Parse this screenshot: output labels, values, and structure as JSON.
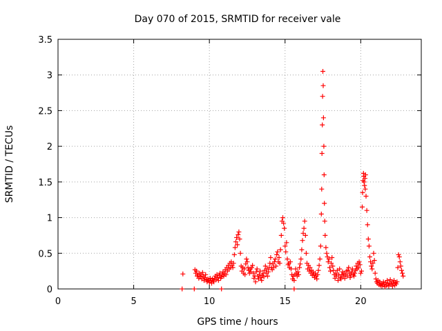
{
  "chart_data": {
    "type": "scatter",
    "title": "Day 070 of 2015, SRMTID for receiver vale",
    "xlabel": "GPS time / hours",
    "ylabel": "SRMTID / TECUs",
    "xlim": [
      0,
      24
    ],
    "ylim": [
      0,
      3.5
    ],
    "xticks": [
      0,
      5,
      10,
      15,
      20
    ],
    "yticks": [
      0,
      0.5,
      1,
      1.5,
      2,
      2.5,
      3,
      3.5
    ],
    "xtick_labels": [
      "0",
      "5",
      "10",
      "15",
      "20"
    ],
    "ytick_labels": [
      "0",
      "0.5",
      "1",
      "1.5",
      "2",
      "2.5",
      "3",
      "3.5"
    ],
    "grid": true,
    "marker": "+",
    "color": "#ff0000",
    "series": [
      {
        "name": "SRMTID",
        "points": [
          [
            8.2,
            0.0
          ],
          [
            8.25,
            0.21
          ],
          [
            9.0,
            0.0
          ],
          [
            10.8,
            0.0
          ],
          [
            15.6,
            0.0
          ],
          [
            9.05,
            0.27
          ],
          [
            9.1,
            0.22
          ],
          [
            9.15,
            0.25
          ],
          [
            9.2,
            0.18
          ],
          [
            9.25,
            0.2
          ],
          [
            9.3,
            0.15
          ],
          [
            9.35,
            0.22
          ],
          [
            9.4,
            0.17
          ],
          [
            9.45,
            0.2
          ],
          [
            9.5,
            0.14
          ],
          [
            9.55,
            0.23
          ],
          [
            9.6,
            0.18
          ],
          [
            9.65,
            0.12
          ],
          [
            9.7,
            0.16
          ],
          [
            9.75,
            0.2
          ],
          [
            9.8,
            0.13
          ],
          [
            9.85,
            0.1
          ],
          [
            9.9,
            0.14
          ],
          [
            9.95,
            0.12
          ],
          [
            10.0,
            0.09
          ],
          [
            10.05,
            0.15
          ],
          [
            10.1,
            0.11
          ],
          [
            10.15,
            0.08
          ],
          [
            10.2,
            0.14
          ],
          [
            10.25,
            0.12
          ],
          [
            10.3,
            0.1
          ],
          [
            10.35,
            0.15
          ],
          [
            10.4,
            0.18
          ],
          [
            10.45,
            0.13
          ],
          [
            10.5,
            0.2
          ],
          [
            10.55,
            0.16
          ],
          [
            10.6,
            0.12
          ],
          [
            10.65,
            0.19
          ],
          [
            10.7,
            0.22
          ],
          [
            10.75,
            0.15
          ],
          [
            10.8,
            0.17
          ],
          [
            10.85,
            0.2
          ],
          [
            10.9,
            0.24
          ],
          [
            10.95,
            0.18
          ],
          [
            11.0,
            0.22
          ],
          [
            11.05,
            0.27
          ],
          [
            11.1,
            0.2
          ],
          [
            11.15,
            0.3
          ],
          [
            11.2,
            0.25
          ],
          [
            11.25,
            0.33
          ],
          [
            11.3,
            0.28
          ],
          [
            11.35,
            0.36
          ],
          [
            11.4,
            0.3
          ],
          [
            11.45,
            0.38
          ],
          [
            11.5,
            0.33
          ],
          [
            11.55,
            0.3
          ],
          [
            11.6,
            0.36
          ],
          [
            11.65,
            0.48
          ],
          [
            11.7,
            0.58
          ],
          [
            11.75,
            0.66
          ],
          [
            11.8,
            0.72
          ],
          [
            11.85,
            0.62
          ],
          [
            11.9,
            0.76
          ],
          [
            11.95,
            0.8
          ],
          [
            12.0,
            0.7
          ],
          [
            12.05,
            0.5
          ],
          [
            12.1,
            0.32
          ],
          [
            12.15,
            0.25
          ],
          [
            12.2,
            0.3
          ],
          [
            12.25,
            0.22
          ],
          [
            12.3,
            0.28
          ],
          [
            12.35,
            0.2
          ],
          [
            12.4,
            0.35
          ],
          [
            12.45,
            0.42
          ],
          [
            12.5,
            0.38
          ],
          [
            12.55,
            0.3
          ],
          [
            12.6,
            0.26
          ],
          [
            12.65,
            0.22
          ],
          [
            12.7,
            0.28
          ],
          [
            12.75,
            0.24
          ],
          [
            12.8,
            0.3
          ],
          [
            12.85,
            0.33
          ],
          [
            12.9,
            0.22
          ],
          [
            12.95,
            0.15
          ],
          [
            13.0,
            0.18
          ],
          [
            13.05,
            0.1
          ],
          [
            13.1,
            0.24
          ],
          [
            13.15,
            0.28
          ],
          [
            13.2,
            0.18
          ],
          [
            13.25,
            0.14
          ],
          [
            13.3,
            0.2
          ],
          [
            13.35,
            0.25
          ],
          [
            13.4,
            0.16
          ],
          [
            13.45,
            0.12
          ],
          [
            13.5,
            0.19
          ],
          [
            13.55,
            0.22
          ],
          [
            13.6,
            0.17
          ],
          [
            13.65,
            0.26
          ],
          [
            13.7,
            0.32
          ],
          [
            13.75,
            0.22
          ],
          [
            13.8,
            0.28
          ],
          [
            13.85,
            0.18
          ],
          [
            13.9,
            0.24
          ],
          [
            13.95,
            0.3
          ],
          [
            14.0,
            0.36
          ],
          [
            14.05,
            0.44
          ],
          [
            14.1,
            0.3
          ],
          [
            14.15,
            0.27
          ],
          [
            14.2,
            0.35
          ],
          [
            14.25,
            0.3
          ],
          [
            14.3,
            0.38
          ],
          [
            14.35,
            0.42
          ],
          [
            14.4,
            0.32
          ],
          [
            14.45,
            0.48
          ],
          [
            14.5,
            0.52
          ],
          [
            14.55,
            0.38
          ],
          [
            14.6,
            0.44
          ],
          [
            14.65,
            0.36
          ],
          [
            14.7,
            0.55
          ],
          [
            14.75,
            0.75
          ],
          [
            14.8,
            0.95
          ],
          [
            14.85,
            1.0
          ],
          [
            14.9,
            0.92
          ],
          [
            14.95,
            0.85
          ],
          [
            15.0,
            0.6
          ],
          [
            15.05,
            0.52
          ],
          [
            15.1,
            0.65
          ],
          [
            15.15,
            0.42
          ],
          [
            15.2,
            0.34
          ],
          [
            15.25,
            0.36
          ],
          [
            15.3,
            0.3
          ],
          [
            15.35,
            0.38
          ],
          [
            15.4,
            0.28
          ],
          [
            15.45,
            0.2
          ],
          [
            15.5,
            0.14
          ],
          [
            15.55,
            0.18
          ],
          [
            15.6,
            0.12
          ],
          [
            15.65,
            0.2
          ],
          [
            15.7,
            0.28
          ],
          [
            15.75,
            0.22
          ],
          [
            15.8,
            0.18
          ],
          [
            15.85,
            0.24
          ],
          [
            15.9,
            0.2
          ],
          [
            15.95,
            0.3
          ],
          [
            16.0,
            0.35
          ],
          [
            16.05,
            0.42
          ],
          [
            16.1,
            0.55
          ],
          [
            16.15,
            0.68
          ],
          [
            16.2,
            0.78
          ],
          [
            16.25,
            0.85
          ],
          [
            16.3,
            0.95
          ],
          [
            16.35,
            0.75
          ],
          [
            16.4,
            0.5
          ],
          [
            16.45,
            0.36
          ],
          [
            16.5,
            0.28
          ],
          [
            16.55,
            0.33
          ],
          [
            16.6,
            0.25
          ],
          [
            16.65,
            0.3
          ],
          [
            16.7,
            0.22
          ],
          [
            16.75,
            0.26
          ],
          [
            16.8,
            0.19
          ],
          [
            16.85,
            0.24
          ],
          [
            16.9,
            0.2
          ],
          [
            16.95,
            0.16
          ],
          [
            17.0,
            0.22
          ],
          [
            17.05,
            0.18
          ],
          [
            17.1,
            0.14
          ],
          [
            17.15,
            0.2
          ],
          [
            17.2,
            0.26
          ],
          [
            17.25,
            0.33
          ],
          [
            17.3,
            0.42
          ],
          [
            17.35,
            0.6
          ],
          [
            17.4,
            1.05
          ],
          [
            17.42,
            1.4
          ],
          [
            17.44,
            1.9
          ],
          [
            17.46,
            2.3
          ],
          [
            17.48,
            2.7
          ],
          [
            17.5,
            3.05
          ],
          [
            17.52,
            2.85
          ],
          [
            17.54,
            2.4
          ],
          [
            17.56,
            2.0
          ],
          [
            17.58,
            1.6
          ],
          [
            17.6,
            1.2
          ],
          [
            17.62,
            0.95
          ],
          [
            17.65,
            0.75
          ],
          [
            17.7,
            0.58
          ],
          [
            17.75,
            0.5
          ],
          [
            17.8,
            0.45
          ],
          [
            17.85,
            0.38
          ],
          [
            17.9,
            0.42
          ],
          [
            17.95,
            0.3
          ],
          [
            18.0,
            0.25
          ],
          [
            18.05,
            0.36
          ],
          [
            18.1,
            0.44
          ],
          [
            18.15,
            0.32
          ],
          [
            18.2,
            0.26
          ],
          [
            18.25,
            0.2
          ],
          [
            18.3,
            0.15
          ],
          [
            18.35,
            0.22
          ],
          [
            18.4,
            0.18
          ],
          [
            18.45,
            0.26
          ],
          [
            18.5,
            0.12
          ],
          [
            18.55,
            0.2
          ],
          [
            18.6,
            0.28
          ],
          [
            18.65,
            0.16
          ],
          [
            18.7,
            0.14
          ],
          [
            18.75,
            0.2
          ],
          [
            18.8,
            0.24
          ],
          [
            18.85,
            0.18
          ],
          [
            18.9,
            0.22
          ],
          [
            18.95,
            0.15
          ],
          [
            19.0,
            0.2
          ],
          [
            19.05,
            0.25
          ],
          [
            19.1,
            0.18
          ],
          [
            19.15,
            0.26
          ],
          [
            19.2,
            0.3
          ],
          [
            19.25,
            0.22
          ],
          [
            19.3,
            0.16
          ],
          [
            19.35,
            0.2
          ],
          [
            19.4,
            0.24
          ],
          [
            19.45,
            0.28
          ],
          [
            19.5,
            0.2
          ],
          [
            19.55,
            0.18
          ],
          [
            19.6,
            0.22
          ],
          [
            19.65,
            0.26
          ],
          [
            19.7,
            0.32
          ],
          [
            19.75,
            0.28
          ],
          [
            19.8,
            0.36
          ],
          [
            19.85,
            0.3
          ],
          [
            19.9,
            0.38
          ],
          [
            19.95,
            0.34
          ],
          [
            20.0,
            0.22
          ],
          [
            20.05,
            0.25
          ],
          [
            20.1,
            1.15
          ],
          [
            20.12,
            1.35
          ],
          [
            20.15,
            1.52
          ],
          [
            20.18,
            1.62
          ],
          [
            20.2,
            1.58
          ],
          [
            20.22,
            1.5
          ],
          [
            20.25,
            1.45
          ],
          [
            20.28,
            1.55
          ],
          [
            20.3,
            1.4
          ],
          [
            20.32,
            1.6
          ],
          [
            20.35,
            1.3
          ],
          [
            20.4,
            1.1
          ],
          [
            20.45,
            0.9
          ],
          [
            20.5,
            0.7
          ],
          [
            20.55,
            0.6
          ],
          [
            20.6,
            0.45
          ],
          [
            20.65,
            0.38
          ],
          [
            20.7,
            0.32
          ],
          [
            20.75,
            0.28
          ],
          [
            20.8,
            0.36
          ],
          [
            20.85,
            0.5
          ],
          [
            20.9,
            0.4
          ],
          [
            20.95,
            0.22
          ],
          [
            21.0,
            0.14
          ],
          [
            21.05,
            0.1
          ],
          [
            21.1,
            0.08
          ],
          [
            21.15,
            0.12
          ],
          [
            21.2,
            0.06
          ],
          [
            21.25,
            0.1
          ],
          [
            21.3,
            0.05
          ],
          [
            21.35,
            0.08
          ],
          [
            21.4,
            0.04
          ],
          [
            21.45,
            0.07
          ],
          [
            21.5,
            0.1
          ],
          [
            21.55,
            0.06
          ],
          [
            21.6,
            0.03
          ],
          [
            21.65,
            0.09
          ],
          [
            21.7,
            0.05
          ],
          [
            21.75,
            0.12
          ],
          [
            21.8,
            0.07
          ],
          [
            21.85,
            0.04
          ],
          [
            21.9,
            0.08
          ],
          [
            21.95,
            0.13
          ],
          [
            22.0,
            0.06
          ],
          [
            22.05,
            0.1
          ],
          [
            22.1,
            0.04
          ],
          [
            22.15,
            0.08
          ],
          [
            22.2,
            0.12
          ],
          [
            22.25,
            0.05
          ],
          [
            22.3,
            0.09
          ],
          [
            22.35,
            0.07
          ],
          [
            22.4,
            0.1
          ],
          [
            22.45,
            0.3
          ],
          [
            22.5,
            0.48
          ],
          [
            22.55,
            0.45
          ],
          [
            22.6,
            0.38
          ],
          [
            22.65,
            0.32
          ],
          [
            22.7,
            0.26
          ],
          [
            22.75,
            0.22
          ],
          [
            22.8,
            0.18
          ]
        ]
      }
    ]
  }
}
